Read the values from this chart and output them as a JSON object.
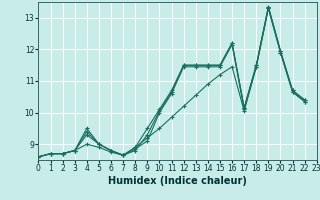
{
  "xlabel": "Humidex (Indice chaleur)",
  "bg_color": "#c8ece8",
  "line_color": "#1a6e60",
  "grid_color": "#ffffff",
  "series": [
    [
      8.6,
      8.7,
      8.7,
      8.8,
      9.5,
      9.0,
      8.8,
      8.65,
      8.8,
      9.3,
      10.05,
      10.65,
      11.5,
      11.5,
      11.5,
      11.5,
      12.2,
      10.15,
      11.5,
      13.35,
      11.95,
      10.7,
      10.4
    ],
    [
      8.6,
      8.7,
      8.7,
      8.8,
      9.4,
      9.0,
      8.8,
      8.65,
      8.85,
      9.1,
      10.0,
      10.6,
      11.45,
      11.45,
      11.45,
      11.45,
      12.15,
      10.1,
      11.45,
      13.3,
      11.9,
      10.65,
      10.35
    ],
    [
      8.6,
      8.7,
      8.7,
      8.8,
      9.3,
      9.0,
      8.8,
      8.65,
      8.9,
      9.5,
      10.1,
      10.7,
      11.5,
      11.5,
      11.5,
      11.5,
      12.2,
      10.15,
      11.5,
      13.35,
      11.95,
      10.7,
      10.4
    ],
    [
      8.6,
      8.7,
      8.7,
      8.8,
      9.0,
      8.9,
      8.75,
      8.65,
      8.9,
      9.2,
      9.5,
      9.85,
      10.2,
      10.55,
      10.9,
      11.2,
      11.45,
      10.05,
      11.45,
      13.3,
      11.9,
      10.65,
      10.35
    ]
  ],
  "x_values": [
    0,
    1,
    2,
    3,
    4,
    5,
    6,
    7,
    8,
    9,
    10,
    11,
    12,
    13,
    14,
    15,
    16,
    17,
    18,
    19,
    20,
    21,
    22
  ],
  "xlim": [
    0,
    23
  ],
  "ylim": [
    8.5,
    13.5
  ],
  "yticks": [
    9,
    10,
    11,
    12,
    13
  ],
  "xticks": [
    0,
    1,
    2,
    3,
    4,
    5,
    6,
    7,
    8,
    9,
    10,
    11,
    12,
    13,
    14,
    15,
    16,
    17,
    18,
    19,
    20,
    21,
    22,
    23
  ],
  "figsize": [
    3.2,
    2.0
  ],
  "dpi": 100,
  "xlabel_fontsize": 7,
  "tick_fontsize": 5.5,
  "marker_size": 2.5,
  "line_width": 0.8
}
